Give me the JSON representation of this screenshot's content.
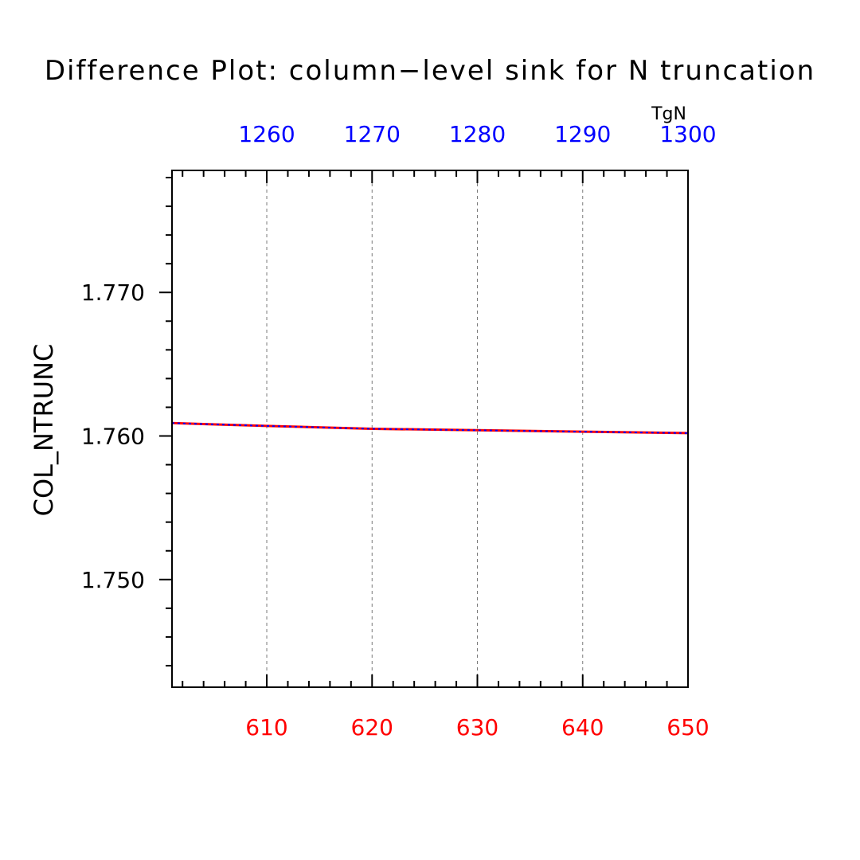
{
  "chart_data": {
    "type": "line",
    "title": "Difference Plot: column−level sink for N truncation",
    "ylabel": "COL_NTRUNC",
    "xlim": [
      601,
      650
    ],
    "ylim": [
      1.7425,
      1.7785
    ],
    "y_ticks": [
      1.75,
      1.76,
      1.77
    ],
    "y_tick_labels": [
      "1.750",
      "1.760",
      "1.770"
    ],
    "x_ticks": [
      610,
      620,
      630,
      640,
      650
    ],
    "x_tick_labels": [
      "610",
      "620",
      "630",
      "640",
      "650"
    ],
    "x_tick_color": "#ff0000",
    "top_axis": {
      "title": "TgN",
      "ticks": [
        1260,
        1270,
        1280,
        1290,
        1300
      ],
      "tick_labels": [
        "1260",
        "1270",
        "1280",
        "1290",
        "1300"
      ],
      "color": "#0000ff"
    },
    "grid": "vertical dashed",
    "series": [
      {
        "color": "#ff0000",
        "dash": false,
        "x": [
          601,
          610,
          620,
          630,
          640,
          650
        ],
        "y": [
          1.7609,
          1.7607,
          1.7605,
          1.7604,
          1.7603,
          1.7602
        ]
      },
      {
        "color": "#0000ff",
        "dash": true,
        "x": [
          601,
          610,
          620,
          630,
          640,
          650
        ],
        "y": [
          1.7609,
          1.7607,
          1.7605,
          1.7604,
          1.7603,
          1.7602
        ]
      }
    ]
  }
}
